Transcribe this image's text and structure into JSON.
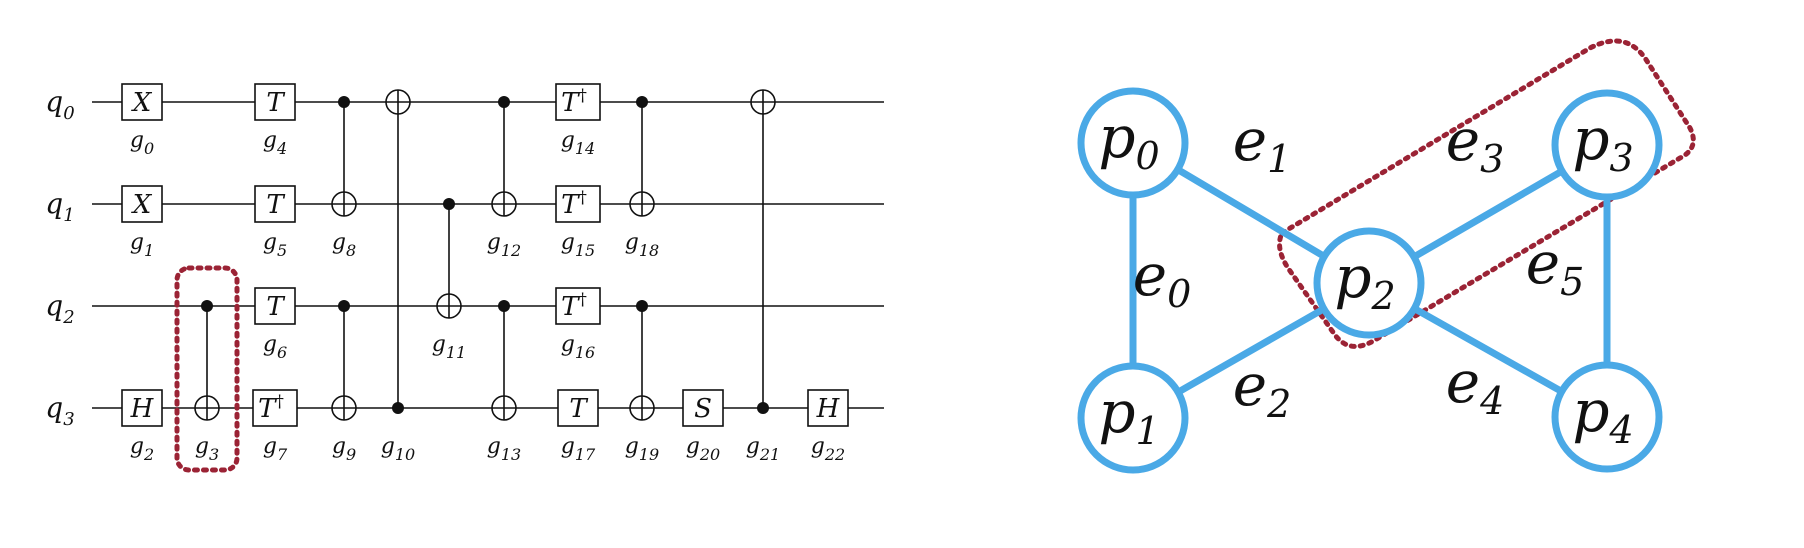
{
  "circuit": {
    "qubits": [
      {
        "name": "q",
        "index": "0"
      },
      {
        "name": "q",
        "index": "1"
      },
      {
        "name": "q",
        "index": "2"
      },
      {
        "name": "q",
        "index": "3"
      }
    ],
    "single_gates": [
      {
        "id": "0",
        "symbol": "X",
        "dagger": false,
        "qubit": 0
      },
      {
        "id": "1",
        "symbol": "X",
        "dagger": false,
        "qubit": 1
      },
      {
        "id": "2",
        "symbol": "H",
        "dagger": false,
        "qubit": 3
      },
      {
        "id": "4",
        "symbol": "T",
        "dagger": false,
        "qubit": 0
      },
      {
        "id": "5",
        "symbol": "T",
        "dagger": false,
        "qubit": 1
      },
      {
        "id": "6",
        "symbol": "T",
        "dagger": false,
        "qubit": 2
      },
      {
        "id": "7",
        "symbol": "T",
        "dagger": true,
        "qubit": 3
      },
      {
        "id": "14",
        "symbol": "T",
        "dagger": true,
        "qubit": 0
      },
      {
        "id": "15",
        "symbol": "T",
        "dagger": true,
        "qubit": 1
      },
      {
        "id": "16",
        "symbol": "T",
        "dagger": true,
        "qubit": 2
      },
      {
        "id": "17",
        "symbol": "T",
        "dagger": false,
        "qubit": 3
      },
      {
        "id": "20",
        "symbol": "S",
        "dagger": false,
        "qubit": 3
      },
      {
        "id": "22",
        "symbol": "H",
        "dagger": false,
        "qubit": 3
      }
    ],
    "cnot_gates": [
      {
        "id": "3",
        "control": 2,
        "target": 3
      },
      {
        "id": "8",
        "control": 0,
        "target": 1
      },
      {
        "id": "9",
        "control": 2,
        "target": 3
      },
      {
        "id": "10",
        "control": 3,
        "target": 0
      },
      {
        "id": "11",
        "control": 1,
        "target": 2
      },
      {
        "id": "12",
        "control": 0,
        "target": 1
      },
      {
        "id": "13",
        "control": 2,
        "target": 3
      },
      {
        "id": "18",
        "control": 0,
        "target": 1
      },
      {
        "id": "19",
        "control": 2,
        "target": 3
      },
      {
        "id": "21",
        "control": 3,
        "target": 0
      }
    ],
    "gate_label_prefix": "g",
    "dagger_symbol": "†",
    "highlighted_gate": "3",
    "highlight_color": "#9b2335"
  },
  "graph": {
    "nodes": [
      {
        "id": "p0",
        "name": "p",
        "index": "0"
      },
      {
        "id": "p1",
        "name": "p",
        "index": "1"
      },
      {
        "id": "p2",
        "name": "p",
        "index": "2"
      },
      {
        "id": "p3",
        "name": "p",
        "index": "3"
      },
      {
        "id": "p4",
        "name": "p",
        "index": "4"
      }
    ],
    "edges": [
      {
        "name": "e",
        "index": "0",
        "from": "p0",
        "to": "p1"
      },
      {
        "name": "e",
        "index": "1",
        "from": "p0",
        "to": "p2"
      },
      {
        "name": "e",
        "index": "2",
        "from": "p1",
        "to": "p2"
      },
      {
        "name": "e",
        "index": "3",
        "from": "p2",
        "to": "p3"
      },
      {
        "name": "e",
        "index": "4",
        "from": "p2",
        "to": "p4"
      },
      {
        "name": "e",
        "index": "5",
        "from": "p3",
        "to": "p4"
      }
    ],
    "highlighted_nodes": [
      "p2",
      "p3"
    ],
    "node_color": "#4aa9e6",
    "highlight_color": "#9b2335"
  }
}
